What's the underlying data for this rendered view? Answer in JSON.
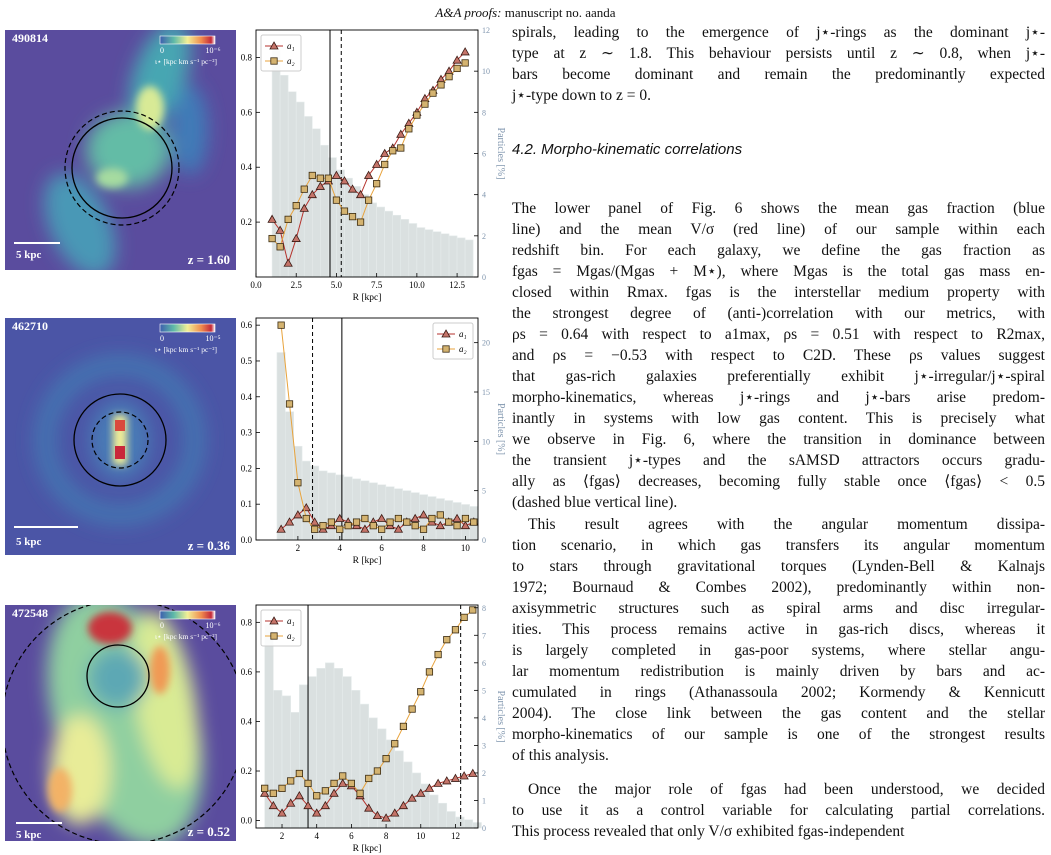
{
  "header": {
    "journal": "A&A proofs:",
    "manuscript": "manuscript no. aanda"
  },
  "panels": [
    {
      "map": {
        "id": "490814",
        "scale": "5 kpc",
        "redshift": "z = 1.60",
        "cbar_min": "0",
        "cbar_max": "10⁻⁶",
        "cbar_label": "ι⋆ [kpc km s⁻¹ pc⁻²]"
      },
      "chart": {
        "type": "line",
        "xlabel": "R [kpc]",
        "y2label": "Particles [%]",
        "legend": "upper left",
        "x": [
          1,
          1.5,
          2,
          2.5,
          3,
          3.5,
          4,
          4.5,
          5,
          5.5,
          6,
          6.5,
          7,
          7.5,
          8,
          8.5,
          9,
          9.5,
          10,
          10.5,
          11,
          11.5,
          12,
          12.5,
          13
        ],
        "series": [
          {
            "name": "a₁",
            "color": "#b5322c",
            "marker": "triangle",
            "values": [
              0.21,
              0.17,
              0.05,
              0.14,
              0.25,
              0.3,
              0.33,
              0.35,
              0.37,
              0.35,
              0.32,
              0.3,
              0.37,
              0.41,
              0.45,
              0.47,
              0.52,
              0.56,
              0.6,
              0.65,
              0.68,
              0.72,
              0.75,
              0.79,
              0.82
            ]
          },
          {
            "name": "a₂",
            "color": "#e8a33c",
            "marker": "square",
            "values": [
              0.14,
              0.11,
              0.21,
              0.26,
              0.32,
              0.37,
              0.36,
              0.36,
              0.28,
              0.24,
              0.22,
              0.2,
              0.28,
              0.34,
              0.41,
              0.46,
              0.47,
              0.54,
              0.59,
              0.63,
              0.67,
              0.7,
              0.73,
              0.76,
              0.78
            ]
          }
        ],
        "histogram": {
          "color": "#cdd6d6",
          "axis": "y2",
          "bins": [
            1,
            1.5,
            2,
            2.5,
            3,
            3.5,
            4,
            4.5,
            5,
            5.5,
            6,
            6.5,
            7,
            7.5,
            8,
            8.5,
            9,
            9.5,
            10,
            10.5,
            11,
            11.5,
            12,
            12.5,
            13,
            13.5
          ],
          "values": [
            11,
            9.8,
            9,
            8.5,
            7.8,
            7.2,
            6.4,
            5.8,
            5.2,
            4.8,
            4.4,
            4.0,
            3.6,
            3.4,
            3.2,
            3.0,
            2.8,
            2.6,
            2.4,
            2.3,
            2.2,
            2.1,
            2.0,
            1.9,
            1.8
          ]
        },
        "vlines": [
          {
            "value": 4.6,
            "style": "solid"
          },
          {
            "value": 5.3,
            "style": "dashed"
          }
        ],
        "xlim": [
          0,
          13.8
        ],
        "xticks": [
          {
            "value": 0,
            "label": "0.0"
          },
          2.5,
          {
            "value": 5,
            "label": "5.0"
          },
          7.5,
          {
            "value": 10,
            "label": "10.0"
          },
          12.5
        ],
        "ylim": [
          0,
          0.9
        ],
        "yticks": [
          0.2,
          0.4,
          0.6,
          0.8
        ],
        "y2lim": [
          0,
          12
        ],
        "y2ticks": [
          0,
          2,
          4,
          6,
          8,
          10,
          12
        ]
      }
    },
    {
      "map": {
        "id": "462710",
        "scale": "5 kpc",
        "redshift": "z = 0.36",
        "cbar_min": "0",
        "cbar_max": "10⁻⁵",
        "cbar_label": "ι⋆ [kpc km s⁻¹ pc⁻²]"
      },
      "chart": {
        "type": "line",
        "xlabel": "R [kpc]",
        "y2label": "Particles [%]",
        "legend": "upper right",
        "x": [
          1.2,
          1.6,
          2,
          2.4,
          2.8,
          3.2,
          3.6,
          4,
          4.4,
          4.8,
          5.2,
          5.6,
          6,
          6.4,
          6.8,
          7.2,
          7.6,
          8,
          8.4,
          8.8,
          9.2,
          9.6,
          10,
          10.4
        ],
        "series": [
          {
            "name": "a₁",
            "color": "#b5322c",
            "marker": "triangle",
            "values": [
              0.03,
              0.05,
              0.07,
              0.09,
              0.05,
              0.03,
              0.04,
              0.06,
              0.05,
              0.04,
              0.03,
              0.05,
              0.06,
              0.04,
              0.03,
              0.05,
              0.06,
              0.07,
              0.05,
              0.04,
              0.05,
              0.06,
              0.04,
              0.05
            ]
          },
          {
            "name": "a₂",
            "color": "#e8a33c",
            "marker": "square",
            "values": [
              0.6,
              0.38,
              0.16,
              0.06,
              0.03,
              0.04,
              0.05,
              0.03,
              0.04,
              0.05,
              0.06,
              0.04,
              0.03,
              0.05,
              0.06,
              0.05,
              0.04,
              0.03,
              0.06,
              0.07,
              0.05,
              0.04,
              0.06,
              0.05
            ]
          }
        ],
        "histogram": {
          "color": "#cdd6d6",
          "axis": "y2",
          "bins": [
            1,
            1.4,
            1.8,
            2.2,
            2.6,
            3,
            3.4,
            3.8,
            4.2,
            4.6,
            5,
            5.4,
            5.8,
            6.2,
            6.6,
            7,
            7.4,
            7.8,
            8.2,
            8.6,
            9,
            9.4,
            9.8,
            10.2,
            10.6
          ],
          "values": [
            19,
            13,
            9.5,
            8,
            7.5,
            7,
            6.8,
            6.6,
            6.4,
            6.2,
            6,
            5.8,
            5.6,
            5.4,
            5.2,
            5,
            4.8,
            4.6,
            4.4,
            4.2,
            4,
            3.8,
            3.6,
            3.4
          ]
        },
        "vlines": [
          {
            "value": 2.7,
            "style": "dashed"
          },
          {
            "value": 4.1,
            "style": "solid"
          }
        ],
        "xlim": [
          0,
          10.6
        ],
        "xticks": [
          2,
          4,
          6,
          8,
          10
        ],
        "ylim": [
          0,
          0.62
        ],
        "yticks": [
          {
            "value": 0,
            "label": "0.0"
          },
          0.1,
          0.2,
          0.3,
          0.4,
          0.5,
          0.6
        ],
        "y2lim": [
          0,
          22.5
        ],
        "y2ticks": [
          0,
          5,
          10,
          15,
          20
        ]
      }
    },
    {
      "map": {
        "id": "472548",
        "scale": "5 kpc",
        "redshift": "z = 0.52",
        "cbar_min": "0",
        "cbar_max": "10⁻⁶",
        "cbar_label": "ι⋆ [kpc km s⁻¹ pc⁻²]"
      },
      "chart": {
        "type": "line",
        "xlabel": "R [kpc]",
        "y2label": "Particles [%]",
        "legend": "upper left",
        "x": [
          1,
          1.5,
          2,
          2.5,
          3,
          3.5,
          4,
          4.5,
          5,
          5.5,
          6,
          6.5,
          7,
          7.5,
          8,
          8.5,
          9,
          9.5,
          10,
          10.5,
          11,
          11.5,
          12,
          12.5,
          13
        ],
        "series": [
          {
            "name": "a₁",
            "color": "#b5322c",
            "marker": "triangle",
            "values": [
              0.11,
              0.06,
              0.03,
              0.07,
              0.1,
              0.06,
              0.03,
              0.06,
              0.11,
              0.15,
              0.14,
              0.1,
              0.05,
              0.02,
              0.01,
              0.03,
              0.06,
              0.09,
              0.11,
              0.13,
              0.15,
              0.16,
              0.17,
              0.18,
              0.19
            ]
          },
          {
            "name": "a₂",
            "color": "#e8a33c",
            "marker": "square",
            "values": [
              0.13,
              0.11,
              0.13,
              0.16,
              0.19,
              0.15,
              0.1,
              0.12,
              0.15,
              0.18,
              0.15,
              0.11,
              0.17,
              0.2,
              0.25,
              0.31,
              0.38,
              0.45,
              0.52,
              0.6,
              0.67,
              0.73,
              0.77,
              0.82,
              0.85
            ]
          }
        ],
        "histogram": {
          "color": "#cdd6d6",
          "axis": "y2",
          "bins": [
            1,
            1.5,
            2,
            2.5,
            3,
            3.5,
            4,
            4.5,
            5,
            5.5,
            6,
            6.5,
            7,
            7.5,
            8,
            8.5,
            9,
            9.5,
            10,
            10.5,
            11,
            11.5,
            12,
            12.5,
            13,
            13.5
          ],
          "values": [
            7.4,
            5,
            4.8,
            4.2,
            5.2,
            5.5,
            5.8,
            6,
            5.8,
            5.5,
            5,
            4.5,
            4,
            3.6,
            3.2,
            2.8,
            2.4,
            2,
            1.6,
            1.2,
            0.9,
            0.6,
            0.4,
            0.3,
            0.2
          ]
        },
        "vlines": [
          {
            "value": 3.5,
            "style": "solid"
          },
          {
            "value": 12.3,
            "style": "dashed"
          }
        ],
        "xlim": [
          0.5,
          13.3
        ],
        "xticks": [
          2,
          4,
          6,
          8,
          10,
          12
        ],
        "ylim": [
          -0.03,
          0.87
        ],
        "yticks": [
          {
            "value": 0,
            "label": "0.0"
          },
          0.2,
          0.4,
          0.6,
          0.8
        ],
        "y2lim": [
          0,
          8.1
        ],
        "y2ticks": [
          0,
          1,
          2,
          3,
          4,
          5,
          6,
          7,
          8
        ]
      }
    }
  ],
  "text": {
    "paragraphs": [
      {
        "lines": [
          "spirals, leading to the emergence of j⋆-rings as the dominant j⋆-",
          "type at z ∼ 1.8. This behaviour persists until z ∼ 0.8, when j⋆-",
          "bars become dominant and remain the predominantly expected",
          "j⋆-type down to z = 0."
        ]
      },
      {
        "lines": [
          "The lower panel of Fig. 6 shows the mean gas fraction (blue",
          "line) and the mean V/σ (red line) of our sample within each",
          "redshift bin. For each galaxy, we define the gas fraction as",
          "fgas = Mgas/(Mgas + M⋆), where Mgas is the total gas mass en-",
          "closed within Rmax. fgas is the interstellar medium property with",
          "the strongest degree of (anti-)correlation with our metrics, with",
          "ρs = 0.64 with respect to a1max, ρs = 0.51 with respect to R2max,",
          "and ρs = −0.53 with respect to C2D. These ρs values suggest",
          "that gas-rich galaxies preferentially exhibit j⋆-irregular/j⋆-spiral",
          "morpho-kinematics, whereas j⋆-rings and j⋆-bars arise predom-",
          "inantly in systems with low gas content. This is precisely what",
          "we observe in Fig. 6, where the transition in dominance between",
          "the transient j⋆-types and the sAMSD attractors occurs gradu-",
          "ally as ⟨fgas⟩ decreases, becoming fully stable once ⟨fgas⟩ < 0.5",
          "(dashed blue vertical line)."
        ]
      },
      {
        "lines": [
          "This result agrees with the angular momentum dissipa-",
          "tion scenario, in which gas transfers its angular momentum",
          "to stars through gravitational torques (Lynden-Bell & Kalnajs",
          "1972; Bournaud & Combes 2002), predominantly within non-",
          "axisymmetric structures such as spiral arms and disc irregular-",
          "ities. This process remains active in gas-rich discs, whereas it",
          "is largely completed in gas-poor systems, where stellar angu-",
          "lar momentum redistribution is mainly driven by bars and ac-",
          "cumulated in rings (Athanassoula 2002; Kormendy & Kennicutt",
          "2004). The close link between the gas content and the stellar",
          "morpho-kinematics of our sample is one of the strongest results",
          "of this analysis."
        ]
      },
      {
        "lines": [
          "Once the major role of fgas had been understood, we decided",
          "to use it as a control variable for calculating partial correlations.",
          "This process revealed that only V/σ exhibited fgas-independent"
        ]
      }
    ],
    "heading": "4.2. Morpho-kinematic correlations"
  }
}
